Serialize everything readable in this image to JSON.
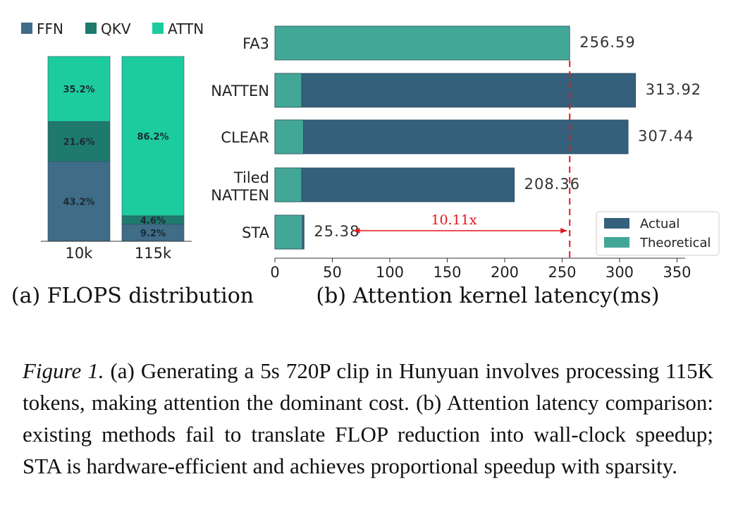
{
  "chart_data": [
    {
      "type": "bar",
      "stacked": true,
      "title": "(a) FLOPS distribution",
      "categories": [
        "10k",
        "115k"
      ],
      "series": [
        {
          "name": "FFN",
          "color": "#3f6c87",
          "values": [
            43.2,
            9.2
          ],
          "labels": [
            "43.2%",
            "9.2%"
          ]
        },
        {
          "name": "QKV",
          "color": "#1f7a6e",
          "values": [
            21.6,
            4.6
          ],
          "labels": [
            "21.6%",
            "4.6%"
          ]
        },
        {
          "name": "ATTN",
          "color": "#1ccc9e",
          "values": [
            35.2,
            86.2
          ],
          "labels": [
            "35.2%",
            "86.2%"
          ]
        }
      ],
      "legend": {
        "position": "top",
        "entries": [
          "FFN",
          "QKV",
          "ATTN"
        ]
      },
      "ylim": [
        0,
        100
      ]
    },
    {
      "type": "bar",
      "orientation": "horizontal",
      "title": "(b) Attention kernel latency(ms)",
      "categories": [
        "FA3",
        "NATTEN",
        "CLEAR",
        "Tiled\nNATTEN",
        "STA"
      ],
      "category_lines": [
        [
          "FA3"
        ],
        [
          "NATTEN"
        ],
        [
          "CLEAR"
        ],
        [
          "Tiled",
          "NATTEN"
        ],
        [
          "STA"
        ]
      ],
      "series": [
        {
          "name": "Actual",
          "color": "#35607c",
          "values": [
            256.59,
            313.92,
            307.44,
            208.36,
            25.38
          ]
        },
        {
          "name": "Theoretical",
          "color": "#43a797",
          "values": [
            256.59,
            23.2,
            24.8,
            23.2,
            23.8
          ]
        }
      ],
      "value_labels": [
        "256.59",
        "313.92",
        "307.44",
        "208.36",
        "25.38"
      ],
      "xlim": [
        0,
        365
      ],
      "xticks": [
        0,
        50,
        100,
        150,
        200,
        250,
        300,
        350
      ],
      "xtick_labels": [
        "0",
        "50",
        "100",
        "150",
        "200",
        "250",
        "300",
        "350"
      ],
      "reference_line": {
        "x": 256.59,
        "color": "#e8141a",
        "style": "dashed"
      },
      "annotation": {
        "text": "10.11x",
        "from": 256.59,
        "to": 25.38,
        "color": "#e8141a"
      },
      "legend": {
        "position": "bottom-right",
        "entries": [
          "Actual",
          "Theoretical"
        ]
      }
    }
  ],
  "caption": {
    "lead": "Figure 1.",
    "text": " (a) Generating a 5s 720P clip in Hunyuan involves processing 115K tokens, making attention the dominant cost. (b) Attention latency comparison: existing methods fail to translate FLOP reduction into wall-clock speedup; STA is hardware-efficient and achieves proportional speedup with sparsity."
  }
}
